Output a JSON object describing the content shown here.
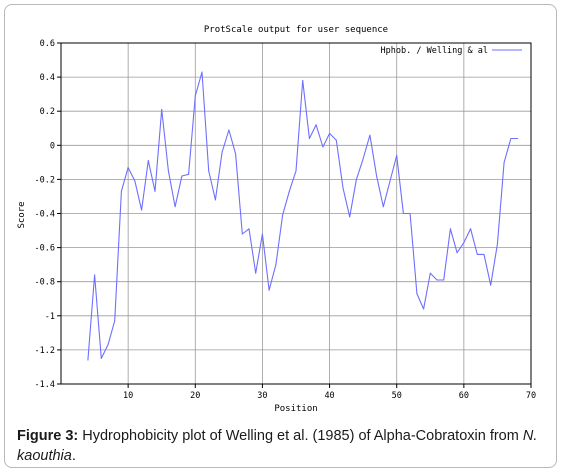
{
  "chart_data": {
    "type": "line",
    "title": "ProtScale output for user sequence",
    "xlabel": "Position",
    "ylabel": "Score",
    "xlim": [
      0,
      70
    ],
    "ylim": [
      -1.4,
      0.6
    ],
    "xticks": [
      10,
      20,
      30,
      40,
      50,
      60,
      70
    ],
    "yticks": [
      0.6,
      0.4,
      0.2,
      0,
      -0.2,
      -0.4,
      -0.6,
      -0.8,
      -1,
      -1.2,
      -1.4
    ],
    "xtick_labels": [
      "10",
      "20",
      "30",
      "40",
      "50",
      "60",
      "70"
    ],
    "ytick_labels": [
      "0.6",
      "0.4",
      "0.2",
      "0",
      "-0.2",
      "-0.4",
      "-0.6",
      "-0.8",
      "-1",
      "-1.2",
      "-1.4"
    ],
    "grid": true,
    "legend_position": "top-right",
    "series": [
      {
        "name": "Hphob. / Welling & al",
        "color": "#6f6fff",
        "x": [
          4,
          5,
          6,
          7,
          8,
          9,
          10,
          11,
          12,
          13,
          14,
          15,
          16,
          17,
          18,
          19,
          20,
          21,
          22,
          23,
          24,
          25,
          26,
          27,
          28,
          29,
          30,
          31,
          32,
          33,
          34,
          35,
          36,
          37,
          38,
          39,
          40,
          41,
          42,
          43,
          44,
          45,
          46,
          47,
          48,
          49,
          50,
          51,
          52,
          53,
          54,
          55,
          56,
          57,
          58,
          59,
          60,
          61,
          62,
          63,
          64,
          65,
          66,
          67,
          68
        ],
        "y": [
          -1.26,
          -0.76,
          -1.25,
          -1.17,
          -1.03,
          -0.27,
          -0.13,
          -0.21,
          -0.38,
          -0.09,
          -0.27,
          0.21,
          -0.15,
          -0.36,
          -0.18,
          -0.17,
          0.29,
          0.43,
          -0.15,
          -0.32,
          -0.04,
          0.09,
          -0.05,
          -0.52,
          -0.49,
          -0.75,
          -0.52,
          -0.85,
          -0.7,
          -0.41,
          -0.27,
          -0.15,
          0.38,
          0.04,
          0.12,
          -0.01,
          0.07,
          0.03,
          -0.25,
          -0.42,
          -0.2,
          -0.08,
          0.06,
          -0.18,
          -0.36,
          -0.21,
          -0.06,
          -0.4,
          -0.4,
          -0.87,
          -0.96,
          -0.75,
          -0.79,
          -0.79,
          -0.49,
          -0.63,
          -0.57,
          -0.49,
          -0.64,
          -0.64,
          -0.82,
          -0.58,
          -0.1,
          0.04,
          0.04
        ]
      }
    ]
  },
  "caption": {
    "label": "Figure 3:",
    "text": " Hydrophobicity plot of Welling et al. (1985) of Alpha-Cobratoxin from ",
    "species": "N. kaouthia",
    "end": "."
  }
}
